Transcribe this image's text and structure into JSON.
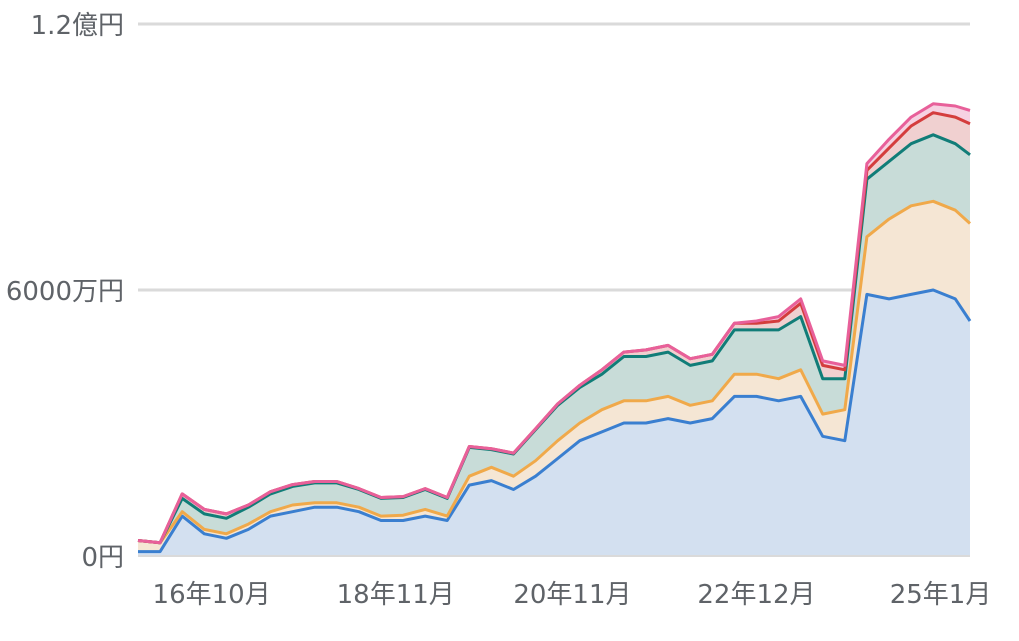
{
  "chart_data": {
    "type": "area",
    "stacked": true,
    "grid": true,
    "ylim": [
      0,
      120000000
    ],
    "y_ticks": [
      {
        "value": 0,
        "label": "0円"
      },
      {
        "value": 60000000,
        "label": "6000万円"
      },
      {
        "value": 120000000,
        "label": "1.2億円"
      }
    ],
    "x_ticks": [
      {
        "date": "2016-10",
        "label": "16年10月"
      },
      {
        "date": "2018-11",
        "label": "18年11月"
      },
      {
        "date": "2020-11",
        "label": "20年11月"
      },
      {
        "date": "2022-12",
        "label": "22年12月"
      },
      {
        "date": "2025-01",
        "label": "25年1月"
      }
    ],
    "x": [
      "2015-12",
      "2016-03",
      "2016-06",
      "2016-09",
      "2016-12",
      "2017-03",
      "2017-06",
      "2017-09",
      "2017-12",
      "2018-03",
      "2018-06",
      "2018-09",
      "2018-12",
      "2019-03",
      "2019-06",
      "2019-09",
      "2019-12",
      "2020-03",
      "2020-06",
      "2020-09",
      "2020-12",
      "2021-03",
      "2021-06",
      "2021-09",
      "2021-12",
      "2022-03",
      "2022-06",
      "2022-09",
      "2022-12",
      "2023-03",
      "2023-06",
      "2023-09",
      "2023-12",
      "2024-03",
      "2024-06",
      "2024-09",
      "2024-12",
      "2025-03",
      "2025-05"
    ],
    "series": [
      {
        "color": "#3a7fd0",
        "fill": "#d3e0f0",
        "values": [
          1000000,
          1000000,
          9000000,
          5000000,
          4000000,
          6000000,
          9000000,
          10000000,
          11000000,
          11000000,
          10000000,
          8000000,
          8000000,
          9000000,
          8000000,
          16000000,
          17000000,
          15000000,
          18000000,
          22000000,
          26000000,
          28000000,
          30000000,
          30000000,
          31000000,
          30000000,
          31000000,
          36000000,
          36000000,
          35000000,
          36000000,
          27000000,
          26000000,
          59000000,
          58000000,
          59000000,
          60000000,
          58000000,
          53000000
        ]
      },
      {
        "color": "#f0a94a",
        "fill": "#f5e6d4",
        "values": [
          2500000,
          2000000,
          1000000,
          1000000,
          1000000,
          1200000,
          1000000,
          1500000,
          1000000,
          1000000,
          1000000,
          1000000,
          1200000,
          1500000,
          1000000,
          2000000,
          3000000,
          3000000,
          3500000,
          4000000,
          4000000,
          5000000,
          5000000,
          5000000,
          5000000,
          4000000,
          4000000,
          5000000,
          5000000,
          5000000,
          6000000,
          5000000,
          7000000,
          13000000,
          18000000,
          20000000,
          20000000,
          20000000,
          22000000
        ]
      },
      {
        "color": "#117d78",
        "fill": "#c8dcd8",
        "values": [
          0,
          0,
          3000000,
          3500000,
          3500000,
          3800000,
          4000000,
          4200000,
          4500000,
          4500000,
          4000000,
          4000000,
          4000000,
          4500000,
          4000000,
          6500000,
          4000000,
          5000000,
          7000000,
          8000000,
          8000000,
          8000000,
          10000000,
          10000000,
          10000000,
          9000000,
          9000000,
          10000000,
          10000000,
          11000000,
          12000000,
          8000000,
          7000000,
          13000000,
          13000000,
          14000000,
          15000000,
          15000000,
          15500000
        ]
      },
      {
        "color": "#d43d3d",
        "fill": "#f0d0d0",
        "values": [
          0,
          0,
          1000000,
          1000000,
          1000000,
          500000,
          500000,
          400000,
          300000,
          300000,
          200000,
          200000,
          200000,
          200000,
          200000,
          200000,
          200000,
          200000,
          200000,
          300000,
          500000,
          1000000,
          1000000,
          1500000,
          1500000,
          1500000,
          1500000,
          1500000,
          1500000,
          2000000,
          3000000,
          3000000,
          2000000,
          2000000,
          3000000,
          4000000,
          5000000,
          6000000,
          7000000
        ]
      },
      {
        "color": "#e8609a",
        "fill": "#f6d2e2",
        "values": [
          0,
          0,
          0,
          0,
          0,
          0,
          0,
          0,
          0,
          0,
          0,
          0,
          0,
          0,
          0,
          0,
          0,
          0,
          0,
          0,
          0,
          0,
          0,
          0,
          0,
          0,
          0,
          0,
          500000,
          1000000,
          1000000,
          1000000,
          1000000,
          1500000,
          2000000,
          2000000,
          2000000,
          2500000,
          3000000
        ]
      }
    ]
  }
}
